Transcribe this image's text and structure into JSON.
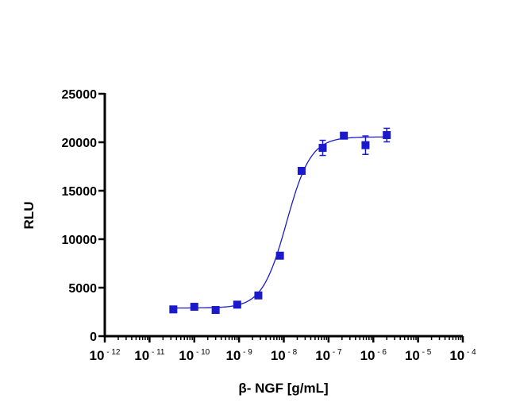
{
  "chart_data": {
    "type": "scatter",
    "title": "",
    "xlabel": "β- NGF [g/mL]",
    "ylabel": "RLU",
    "x_scale": "log",
    "xlim": [
      1e-12,
      0.0001
    ],
    "ylim": [
      0,
      25000
    ],
    "grid": false,
    "x_ticks": [
      -12,
      -11,
      -10,
      -9,
      -8,
      -7,
      -6,
      -5,
      -4
    ],
    "x_tick_labels": [
      "10-12",
      "10-11",
      "10-10",
      "10-9",
      "10-8",
      "10-7",
      "10-6",
      "10-5",
      "10-4"
    ],
    "y_ticks": [
      "0",
      "5000",
      "10000",
      "15000",
      "20000",
      "25000"
    ],
    "series_color": "#1a1acc",
    "series": [
      {
        "x": [
          3.4e-11,
          1e-10,
          3e-10,
          9.1e-10,
          2.7e-09,
          8.2e-09,
          2.5e-08,
          7.4e-08,
          2.2e-07,
          6.7e-07,
          2e-06
        ],
        "y": [
          2760,
          3030,
          2700,
          3250,
          4200,
          8300,
          17050,
          19420,
          20680,
          19700,
          20740
        ],
        "error": [
          0,
          0,
          0,
          0,
          0,
          0,
          0,
          780,
          0,
          950,
          700
        ]
      }
    ],
    "fit": {
      "model": "four-parameter logistic",
      "bottom": 2900,
      "top": 20550,
      "ec50": 1.15e-08,
      "hill": 1.6
    }
  }
}
